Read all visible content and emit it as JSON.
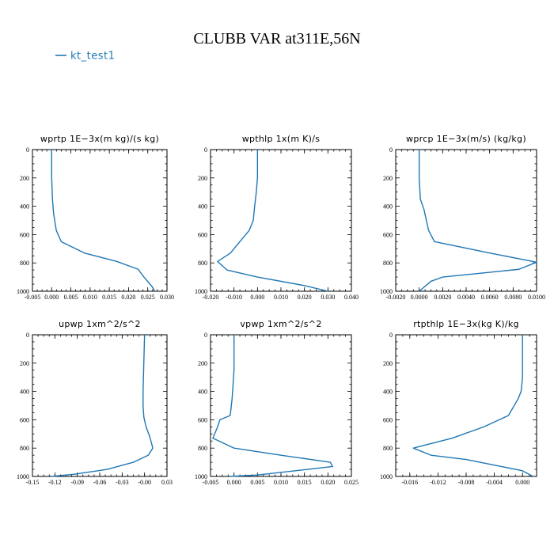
{
  "figure": {
    "title": "CLUBB VAR at311E,56N",
    "legend": {
      "label": "kt_test1",
      "color": "#1f77b4"
    }
  },
  "chart_data": [
    {
      "type": "line",
      "title": "wprtp   1E−3x(m  kg)/(s  kg)",
      "xlim": [
        -0.005,
        0.03
      ],
      "ylim": [
        1000,
        0
      ],
      "xticks": [
        -0.005,
        0.0,
        0.005,
        0.01,
        0.015,
        0.02,
        0.025,
        0.03
      ],
      "xtick_labels": [
        "-0.005",
        "0.000",
        "0.005",
        "0.010",
        "0.015",
        "0.020",
        "0.025",
        "0.030"
      ],
      "yticks": [
        0,
        200,
        400,
        600,
        800,
        1000
      ],
      "ytick_labels": [
        "0",
        "200",
        "400",
        "600",
        "800",
        "1000"
      ],
      "series": [
        {
          "color": "#1f77b4",
          "x": [
            0.0,
            0.0,
            0.0002,
            0.0005,
            0.0012,
            0.0025,
            0.0085,
            0.017,
            0.0225,
            0.024,
            0.0262,
            0.0268
          ],
          "y": [
            0,
            200,
            350,
            450,
            570,
            650,
            730,
            790,
            845,
            900,
            970,
            1000
          ]
        }
      ]
    },
    {
      "type": "line",
      "title": "wpthlp   1x(m  K)/s",
      "xlim": [
        -0.02,
        0.04
      ],
      "ylim": [
        1000,
        0
      ],
      "xticks": [
        -0.02,
        -0.01,
        0.0,
        0.01,
        0.02,
        0.03,
        0.04
      ],
      "xtick_labels": [
        "-0.020",
        "-0.010",
        "0.000",
        "0.010",
        "0.020",
        "0.030",
        "0.040"
      ],
      "yticks": [
        0,
        200,
        400,
        600,
        800,
        1000
      ],
      "ytick_labels": [
        "0",
        "200",
        "400",
        "600",
        "800",
        "1000"
      ],
      "series": [
        {
          "color": "#1f77b4",
          "x": [
            0.0,
            0.0,
            -0.0005,
            -0.0012,
            -0.0018,
            -0.0035,
            -0.0075,
            -0.0115,
            -0.017,
            -0.013,
            0.0,
            0.02,
            0.03
          ],
          "y": [
            0,
            200,
            300,
            400,
            500,
            570,
            650,
            730,
            790,
            850,
            900,
            960,
            1000
          ]
        }
      ]
    },
    {
      "type": "line",
      "title": "wprcp   1E−3x(m/s)  (kg/kg)",
      "xlim": [
        -0.002,
        0.01
      ],
      "ylim": [
        1000,
        0
      ],
      "xticks": [
        -0.002,
        0.0,
        0.002,
        0.004,
        0.006,
        0.008,
        0.01
      ],
      "xtick_labels": [
        "-0.0020",
        "0.0000",
        "0.0020",
        "0.0040",
        "0.0060",
        "0.0080",
        "0.0100"
      ],
      "yticks": [
        0,
        200,
        400,
        600,
        800,
        1000
      ],
      "ytick_labels": [
        "0",
        "200",
        "400",
        "600",
        "800",
        "1000"
      ],
      "series": [
        {
          "color": "#1f77b4",
          "x": [
            0.0,
            0.0,
            0.0001,
            0.0004,
            0.0008,
            0.0013,
            0.006,
            0.01,
            0.0085,
            0.002,
            0.001,
            0.0
          ],
          "y": [
            0,
            200,
            350,
            420,
            570,
            650,
            730,
            795,
            845,
            900,
            930,
            1000
          ]
        }
      ]
    },
    {
      "type": "line",
      "title": "upwp   1xm^2/s^2",
      "xlim": [
        -0.15,
        0.03
      ],
      "ylim": [
        1000,
        0
      ],
      "xticks": [
        -0.15,
        -0.12,
        -0.09,
        -0.06,
        -0.03,
        0.0,
        0.03
      ],
      "xtick_labels": [
        "-0.15",
        "-0.12",
        "-0.09",
        "-0.06",
        "-0.03",
        "-0.00",
        "0.03"
      ],
      "yticks": [
        0,
        200,
        400,
        600,
        800,
        1000
      ],
      "ytick_labels": [
        "0",
        "200",
        "400",
        "600",
        "800",
        "1000"
      ],
      "series": [
        {
          "color": "#1f77b4",
          "x": [
            0.0,
            -0.001,
            -0.002,
            -0.002,
            -0.001,
            0.002,
            0.007,
            0.011,
            0.005,
            -0.015,
            -0.05,
            -0.095,
            -0.125
          ],
          "y": [
            0,
            200,
            400,
            500,
            580,
            650,
            720,
            800,
            850,
            900,
            950,
            985,
            1000
          ]
        }
      ]
    },
    {
      "type": "line",
      "title": "vpwp   1xm^2/s^2",
      "xlim": [
        -0.005,
        0.025
      ],
      "ylim": [
        1000,
        0
      ],
      "xticks": [
        -0.005,
        0.0,
        0.005,
        0.01,
        0.015,
        0.02,
        0.025
      ],
      "xtick_labels": [
        "-0.005",
        "0.000",
        "0.005",
        "0.010",
        "0.015",
        "0.020",
        "0.025"
      ],
      "yticks": [
        0,
        200,
        400,
        600,
        800,
        1000
      ],
      "ytick_labels": [
        "0",
        "200",
        "400",
        "600",
        "800",
        "1000"
      ],
      "series": [
        {
          "color": "#1f77b4",
          "x": [
            0.0,
            0.0,
            0.0,
            -0.0002,
            -0.0004,
            -0.0008,
            -0.003,
            -0.0035,
            -0.0045,
            0.0,
            0.01,
            0.0205,
            0.021,
            0.005,
            -0.001
          ],
          "y": [
            0,
            150,
            250,
            350,
            450,
            570,
            600,
            650,
            730,
            800,
            850,
            900,
            930,
            990,
            1000
          ]
        }
      ]
    },
    {
      "type": "line",
      "title": "rtpthlp   1E−3x(kg  K)/kg",
      "xlim": [
        -0.018,
        0.002
      ],
      "ylim": [
        1000,
        0
      ],
      "xticks": [
        -0.016,
        -0.012,
        -0.008,
        -0.004,
        0.0
      ],
      "xtick_labels": [
        "-0.016",
        "-0.012",
        "-0.008",
        "-0.004",
        "0.000"
      ],
      "yticks": [
        0,
        200,
        400,
        600,
        800,
        1000
      ],
      "ytick_labels": [
        "0",
        "200",
        "400",
        "600",
        "800",
        "1000"
      ],
      "series": [
        {
          "color": "#1f77b4",
          "x": [
            0.0,
            0.0,
            0.0,
            -0.0002,
            -0.0006,
            -0.002,
            -0.0055,
            -0.01,
            -0.0155,
            -0.013,
            -0.008,
            -0.004,
            0.0,
            0.0015
          ],
          "y": [
            0,
            200,
            300,
            400,
            450,
            570,
            650,
            730,
            800,
            850,
            880,
            920,
            960,
            1000
          ]
        }
      ]
    }
  ]
}
